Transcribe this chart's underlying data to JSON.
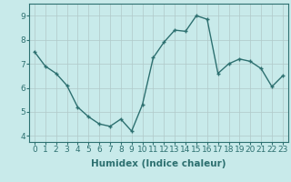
{
  "x": [
    0,
    1,
    2,
    3,
    4,
    5,
    6,
    7,
    8,
    9,
    10,
    11,
    12,
    13,
    14,
    15,
    16,
    17,
    18,
    19,
    20,
    21,
    22,
    23
  ],
  "y": [
    7.5,
    6.9,
    6.6,
    6.1,
    5.2,
    4.8,
    4.5,
    4.4,
    4.7,
    4.2,
    5.3,
    7.25,
    7.9,
    8.4,
    8.35,
    9.0,
    8.85,
    6.6,
    7.0,
    7.2,
    7.1,
    6.8,
    6.05,
    6.5
  ],
  "xlabel": "Humidex (Indice chaleur)",
  "xlim": [
    -0.5,
    23.5
  ],
  "ylim": [
    3.75,
    9.5
  ],
  "yticks": [
    4,
    5,
    6,
    7,
    8,
    9
  ],
  "xticks": [
    0,
    1,
    2,
    3,
    4,
    5,
    6,
    7,
    8,
    9,
    10,
    11,
    12,
    13,
    14,
    15,
    16,
    17,
    18,
    19,
    20,
    21,
    22,
    23
  ],
  "line_color": "#2d7070",
  "marker": "P",
  "marker_size": 2.5,
  "bg_color": "#c8eaea",
  "grid_color": "#b0c8c8",
  "xlabel_fontsize": 7.5,
  "tick_fontsize": 6.5,
  "xlabel_fontweight": "bold"
}
